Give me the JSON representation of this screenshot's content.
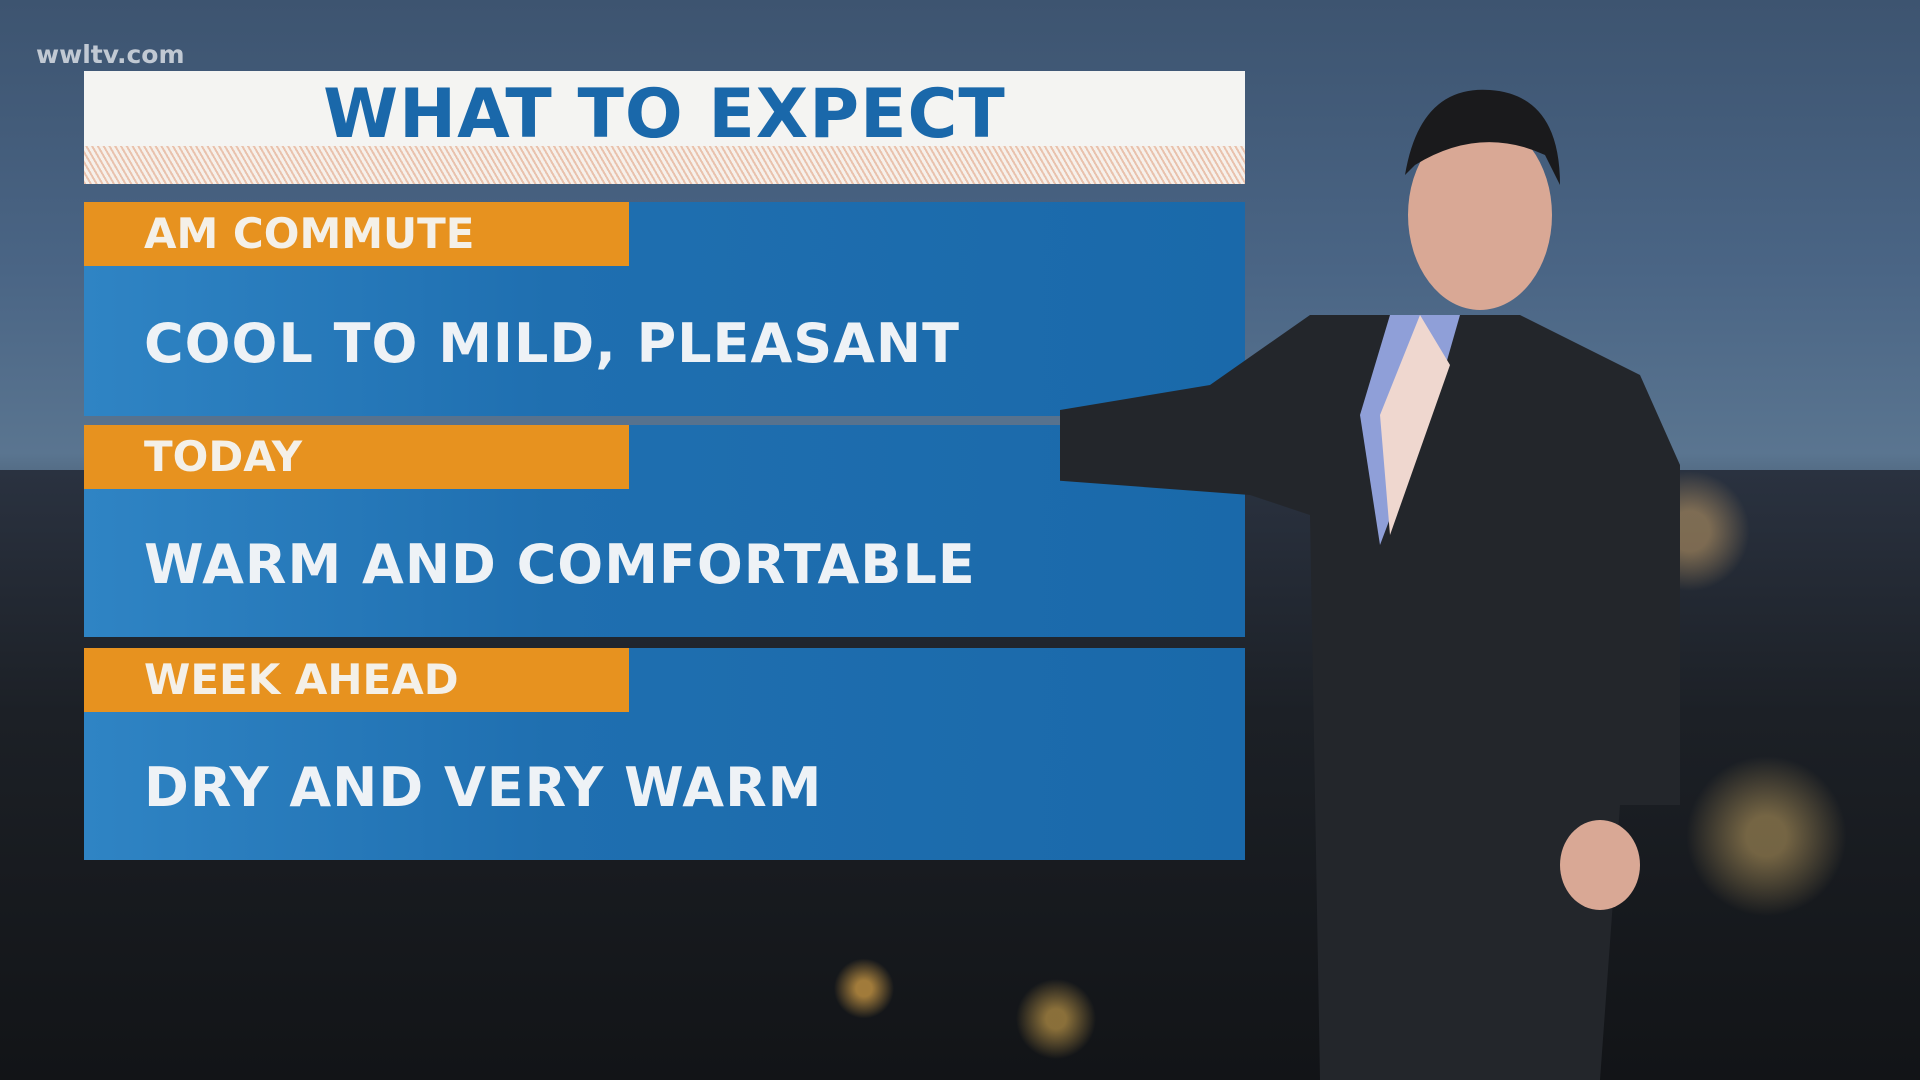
{
  "watermark": "wwltv.com",
  "title": "WHAT TO EXPECT",
  "sections": [
    {
      "label": "AM COMMUTE",
      "text": "COOL TO MILD, PLEASANT"
    },
    {
      "label": "TODAY",
      "text": "WARM AND COMFORTABLE"
    },
    {
      "label": "WEEK AHEAD",
      "text": "DRY AND VERY WARM"
    }
  ],
  "colors": {
    "title": "#1a68aa",
    "label": "#e7921f",
    "panel": "#1f6fb0"
  }
}
